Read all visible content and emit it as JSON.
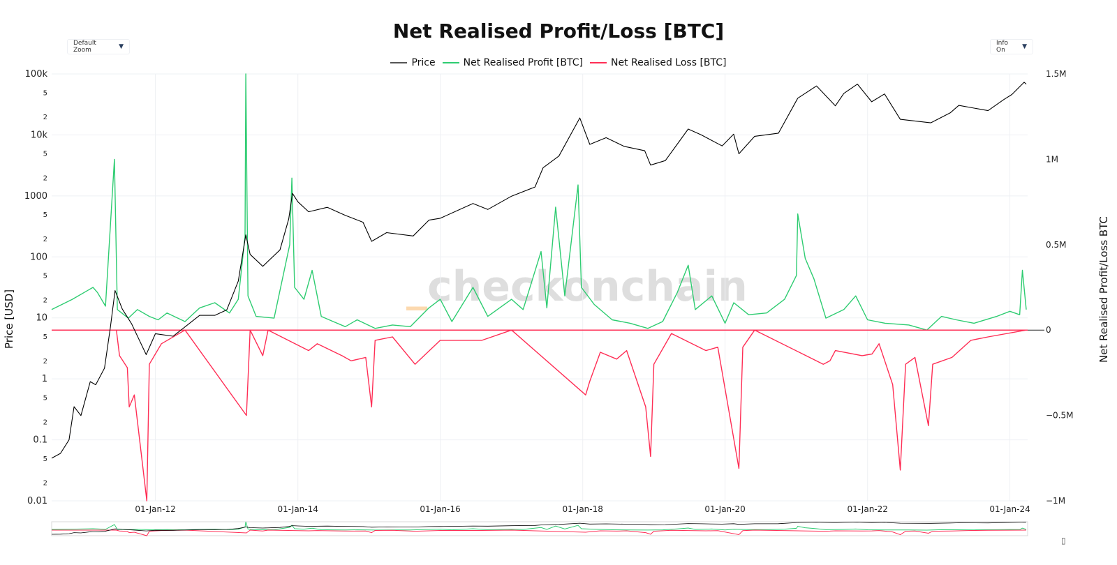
{
  "title": "Net Realised Profit/Loss [BTC]",
  "controls": {
    "zoom_label": "Default Zoom",
    "info_label": "Info On",
    "dropdown_arrow": "▼"
  },
  "watermark": {
    "prefix": "_",
    "text": "checkonchain"
  },
  "colors": {
    "price": "#000000",
    "profit": "#2ecc71",
    "loss": "#ff2e55",
    "grid": "#eef0f4",
    "text": "#111111"
  },
  "chart_data": {
    "type": "line",
    "title": "Net Realised Profit/Loss [BTC]",
    "x_axis": {
      "type": "date",
      "range": [
        "2010-07-18",
        "2024-04-01"
      ],
      "ticks": [
        "2012-01-01",
        "2014-01-01",
        "2016-01-01",
        "2018-01-01",
        "2020-01-01",
        "2022-01-01",
        "2024-01-01"
      ],
      "tick_labels": [
        "01-Jan-12",
        "01-Jan-14",
        "01-Jan-16",
        "01-Jan-18",
        "01-Jan-20",
        "01-Jan-22",
        "01-Jan-24"
      ]
    },
    "y_left": {
      "label": "Price [USD]",
      "scale": "log",
      "range": [
        0.01,
        100000
      ],
      "tick_labels": [
        {
          "v": 0.01,
          "t": "0.01",
          "major": true
        },
        {
          "v": 0.02,
          "t": "2"
        },
        {
          "v": 0.05,
          "t": "5"
        },
        {
          "v": 0.1,
          "t": "0.1",
          "major": true
        },
        {
          "v": 0.2,
          "t": "2"
        },
        {
          "v": 0.5,
          "t": "5"
        },
        {
          "v": 1,
          "t": "1",
          "major": true
        },
        {
          "v": 2,
          "t": "2"
        },
        {
          "v": 5,
          "t": "5"
        },
        {
          "v": 10,
          "t": "10",
          "major": true
        },
        {
          "v": 20,
          "t": "2"
        },
        {
          "v": 50,
          "t": "5"
        },
        {
          "v": 100,
          "t": "100",
          "major": true
        },
        {
          "v": 200,
          "t": "2"
        },
        {
          "v": 500,
          "t": "5"
        },
        {
          "v": 1000,
          "t": "1000",
          "major": true
        },
        {
          "v": 2000,
          "t": "2"
        },
        {
          "v": 5000,
          "t": "5"
        },
        {
          "v": 10000,
          "t": "10k",
          "major": true
        },
        {
          "v": 20000,
          "t": "2"
        },
        {
          "v": 50000,
          "t": "5"
        },
        {
          "v": 100000,
          "t": "100k",
          "major": true
        }
      ]
    },
    "y_right": {
      "label": "Net Realised Profit/Loss BTC",
      "scale": "linear",
      "range": [
        -1000000,
        1500000
      ],
      "tick_labels": [
        {
          "v": -1000000,
          "t": "−1M"
        },
        {
          "v": -500000,
          "t": "−0.5M"
        },
        {
          "v": 0,
          "t": "0"
        },
        {
          "v": 500000,
          "t": "0.5M"
        },
        {
          "v": 1000000,
          "t": "1M"
        },
        {
          "v": 1500000,
          "t": "1.5M"
        }
      ]
    },
    "legend": {
      "placement": "top-center"
    },
    "grid": true,
    "series": [
      {
        "name": "Price",
        "axis": "left",
        "color": "#000000",
        "points": [
          [
            "2010-07-18",
            0.05
          ],
          [
            "2010-09-01",
            0.06
          ],
          [
            "2010-10-15",
            0.1
          ],
          [
            "2010-11-10",
            0.35
          ],
          [
            "2010-12-15",
            0.25
          ],
          [
            "2011-02-01",
            0.9
          ],
          [
            "2011-03-01",
            0.8
          ],
          [
            "2011-04-15",
            1.5
          ],
          [
            "2011-05-15",
            7
          ],
          [
            "2011-06-08",
            28
          ],
          [
            "2011-07-15",
            14
          ],
          [
            "2011-09-01",
            8
          ],
          [
            "2011-11-15",
            2.5
          ],
          [
            "2012-01-01",
            5.5
          ],
          [
            "2012-04-01",
            5
          ],
          [
            "2012-08-15",
            11
          ],
          [
            "2012-11-01",
            11
          ],
          [
            "2013-01-01",
            13.5
          ],
          [
            "2013-03-01",
            40
          ],
          [
            "2013-04-09",
            230
          ],
          [
            "2013-05-01",
            110
          ],
          [
            "2013-07-05",
            70
          ],
          [
            "2013-10-01",
            130
          ],
          [
            "2013-11-15",
            420
          ],
          [
            "2013-12-04",
            1100
          ],
          [
            "2014-01-01",
            800
          ],
          [
            "2014-02-25",
            550
          ],
          [
            "2014-06-01",
            650
          ],
          [
            "2014-09-01",
            480
          ],
          [
            "2014-12-01",
            370
          ],
          [
            "2015-01-14",
            180
          ],
          [
            "2015-04-01",
            250
          ],
          [
            "2015-08-15",
            220
          ],
          [
            "2015-11-04",
            400
          ],
          [
            "2016-01-01",
            430
          ],
          [
            "2016-06-17",
            750
          ],
          [
            "2016-09-01",
            600
          ],
          [
            "2017-01-01",
            990
          ],
          [
            "2017-05-01",
            1400
          ],
          [
            "2017-06-12",
            2900
          ],
          [
            "2017-09-01",
            4500
          ],
          [
            "2017-12-17",
            19000
          ],
          [
            "2018-02-06",
            7000
          ],
          [
            "2018-05-01",
            9000
          ],
          [
            "2018-08-01",
            6500
          ],
          [
            "2018-11-15",
            5500
          ],
          [
            "2018-12-15",
            3200
          ],
          [
            "2019-03-01",
            3800
          ],
          [
            "2019-06-26",
            12500
          ],
          [
            "2019-09-01",
            10000
          ],
          [
            "2019-12-17",
            6600
          ],
          [
            "2020-02-14",
            10300
          ],
          [
            "2020-03-12",
            4900
          ],
          [
            "2020-06-01",
            9500
          ],
          [
            "2020-10-01",
            10700
          ],
          [
            "2021-01-08",
            40000
          ],
          [
            "2021-04-14",
            63500
          ],
          [
            "2021-07-20",
            30000
          ],
          [
            "2021-09-01",
            48000
          ],
          [
            "2021-11-10",
            68000
          ],
          [
            "2022-01-22",
            35000
          ],
          [
            "2022-03-29",
            47000
          ],
          [
            "2022-06-18",
            18000
          ],
          [
            "2022-11-21",
            15800
          ],
          [
            "2023-03-01",
            23000
          ],
          [
            "2023-04-14",
            30500
          ],
          [
            "2023-09-11",
            25000
          ],
          [
            "2023-12-01",
            38000
          ],
          [
            "2024-01-11",
            46000
          ],
          [
            "2024-03-14",
            73000
          ],
          [
            "2024-03-25",
            68000
          ]
        ]
      },
      {
        "name": "Net Realised Profit [BTC]",
        "axis": "right",
        "color": "#2ecc71",
        "points": [
          [
            "2010-07-18",
            120000
          ],
          [
            "2010-11-01",
            180000
          ],
          [
            "2011-02-15",
            250000
          ],
          [
            "2011-03-10",
            220000
          ],
          [
            "2011-04-20",
            140000
          ],
          [
            "2011-06-05",
            1000000
          ],
          [
            "2011-06-20",
            120000
          ],
          [
            "2011-08-15",
            70000
          ],
          [
            "2011-10-01",
            120000
          ],
          [
            "2011-12-01",
            80000
          ],
          [
            "2012-01-15",
            60000
          ],
          [
            "2012-03-01",
            100000
          ],
          [
            "2012-06-01",
            50000
          ],
          [
            "2012-08-15",
            130000
          ],
          [
            "2012-11-01",
            160000
          ],
          [
            "2013-01-15",
            100000
          ],
          [
            "2013-03-01",
            180000
          ],
          [
            "2013-04-05",
            550000
          ],
          [
            "2013-04-09",
            1500000
          ],
          [
            "2013-04-20",
            200000
          ],
          [
            "2013-06-01",
            80000
          ],
          [
            "2013-09-01",
            70000
          ],
          [
            "2013-11-20",
            500000
          ],
          [
            "2013-12-01",
            890000
          ],
          [
            "2013-12-15",
            250000
          ],
          [
            "2014-02-01",
            180000
          ],
          [
            "2014-03-15",
            350000
          ],
          [
            "2014-05-01",
            80000
          ],
          [
            "2014-07-01",
            50000
          ],
          [
            "2014-09-01",
            20000
          ],
          [
            "2014-11-01",
            60000
          ],
          [
            "2015-02-01",
            10000
          ],
          [
            "2015-05-01",
            30000
          ],
          [
            "2015-08-01",
            20000
          ],
          [
            "2015-11-04",
            130000
          ],
          [
            "2016-01-01",
            180000
          ],
          [
            "2016-03-01",
            50000
          ],
          [
            "2016-06-17",
            250000
          ],
          [
            "2016-09-01",
            80000
          ],
          [
            "2017-01-01",
            180000
          ],
          [
            "2017-03-01",
            120000
          ],
          [
            "2017-06-01",
            460000
          ],
          [
            "2017-07-01",
            130000
          ],
          [
            "2017-08-15",
            720000
          ],
          [
            "2017-10-01",
            200000
          ],
          [
            "2017-12-08",
            850000
          ],
          [
            "2017-12-25",
            250000
          ],
          [
            "2018-03-01",
            150000
          ],
          [
            "2018-06-01",
            60000
          ],
          [
            "2018-09-01",
            40000
          ],
          [
            "2018-12-01",
            10000
          ],
          [
            "2019-02-15",
            50000
          ],
          [
            "2019-05-01",
            220000
          ],
          [
            "2019-06-26",
            380000
          ],
          [
            "2019-08-01",
            120000
          ],
          [
            "2019-10-25",
            200000
          ],
          [
            "2020-01-01",
            40000
          ],
          [
            "2020-02-15",
            160000
          ],
          [
            "2020-05-01",
            90000
          ],
          [
            "2020-08-01",
            100000
          ],
          [
            "2020-11-01",
            180000
          ],
          [
            "2021-01-01",
            320000
          ],
          [
            "2021-01-08",
            680000
          ],
          [
            "2021-02-15",
            420000
          ],
          [
            "2021-04-01",
            300000
          ],
          [
            "2021-06-01",
            70000
          ],
          [
            "2021-09-01",
            120000
          ],
          [
            "2021-11-01",
            200000
          ],
          [
            "2022-01-01",
            60000
          ],
          [
            "2022-04-01",
            40000
          ],
          [
            "2022-08-01",
            30000
          ],
          [
            "2022-11-01",
            0
          ],
          [
            "2023-01-15",
            80000
          ],
          [
            "2023-04-01",
            60000
          ],
          [
            "2023-07-01",
            40000
          ],
          [
            "2023-10-25",
            80000
          ],
          [
            "2024-01-01",
            110000
          ],
          [
            "2024-02-20",
            90000
          ],
          [
            "2024-03-05",
            350000
          ],
          [
            "2024-03-25",
            120000
          ]
        ]
      },
      {
        "name": "Net Realised Loss [BTC]",
        "axis": "right",
        "color": "#ff2e55",
        "points": [
          [
            "2010-07-18",
            0
          ],
          [
            "2011-06-15",
            0
          ],
          [
            "2011-07-01",
            -150000
          ],
          [
            "2011-08-10",
            -220000
          ],
          [
            "2011-08-20",
            -450000
          ],
          [
            "2011-09-15",
            -380000
          ],
          [
            "2011-11-18",
            -1000000
          ],
          [
            "2011-12-01",
            -200000
          ],
          [
            "2012-02-01",
            -80000
          ],
          [
            "2012-06-01",
            0
          ],
          [
            "2013-04-12",
            -500000
          ],
          [
            "2013-05-01",
            0
          ],
          [
            "2013-07-05",
            -150000
          ],
          [
            "2013-08-01",
            0
          ],
          [
            "2014-02-25",
            -120000
          ],
          [
            "2014-04-10",
            -80000
          ],
          [
            "2014-08-15",
            -150000
          ],
          [
            "2014-10-01",
            -180000
          ],
          [
            "2014-12-15",
            -160000
          ],
          [
            "2015-01-14",
            -450000
          ],
          [
            "2015-02-01",
            -60000
          ],
          [
            "2015-05-01",
            -40000
          ],
          [
            "2015-08-25",
            -200000
          ],
          [
            "2016-01-01",
            -60000
          ],
          [
            "2016-08-02",
            -60000
          ],
          [
            "2017-01-01",
            0
          ],
          [
            "2018-01-16",
            -380000
          ],
          [
            "2018-02-06",
            -300000
          ],
          [
            "2018-04-01",
            -130000
          ],
          [
            "2018-06-24",
            -170000
          ],
          [
            "2018-08-14",
            -120000
          ],
          [
            "2018-11-20",
            -450000
          ],
          [
            "2018-12-15",
            -740000
          ],
          [
            "2019-01-01",
            -200000
          ],
          [
            "2019-04-01",
            -20000
          ],
          [
            "2019-09-25",
            -120000
          ],
          [
            "2019-11-25",
            -100000
          ],
          [
            "2020-03-12",
            -810000
          ],
          [
            "2020-04-01",
            -100000
          ],
          [
            "2020-06-01",
            0
          ],
          [
            "2021-05-19",
            -200000
          ],
          [
            "2021-06-22",
            -180000
          ],
          [
            "2021-07-20",
            -120000
          ],
          [
            "2021-12-04",
            -150000
          ],
          [
            "2022-01-24",
            -140000
          ],
          [
            "2022-03-01",
            -80000
          ],
          [
            "2022-05-10",
            -320000
          ],
          [
            "2022-06-18",
            -820000
          ],
          [
            "2022-07-15",
            -200000
          ],
          [
            "2022-09-01",
            -160000
          ],
          [
            "2022-11-09",
            -560000
          ],
          [
            "2022-12-01",
            -200000
          ],
          [
            "2023-03-10",
            -160000
          ],
          [
            "2023-06-15",
            -60000
          ],
          [
            "2023-09-11",
            -40000
          ],
          [
            "2024-03-25",
            0
          ]
        ]
      }
    ]
  }
}
